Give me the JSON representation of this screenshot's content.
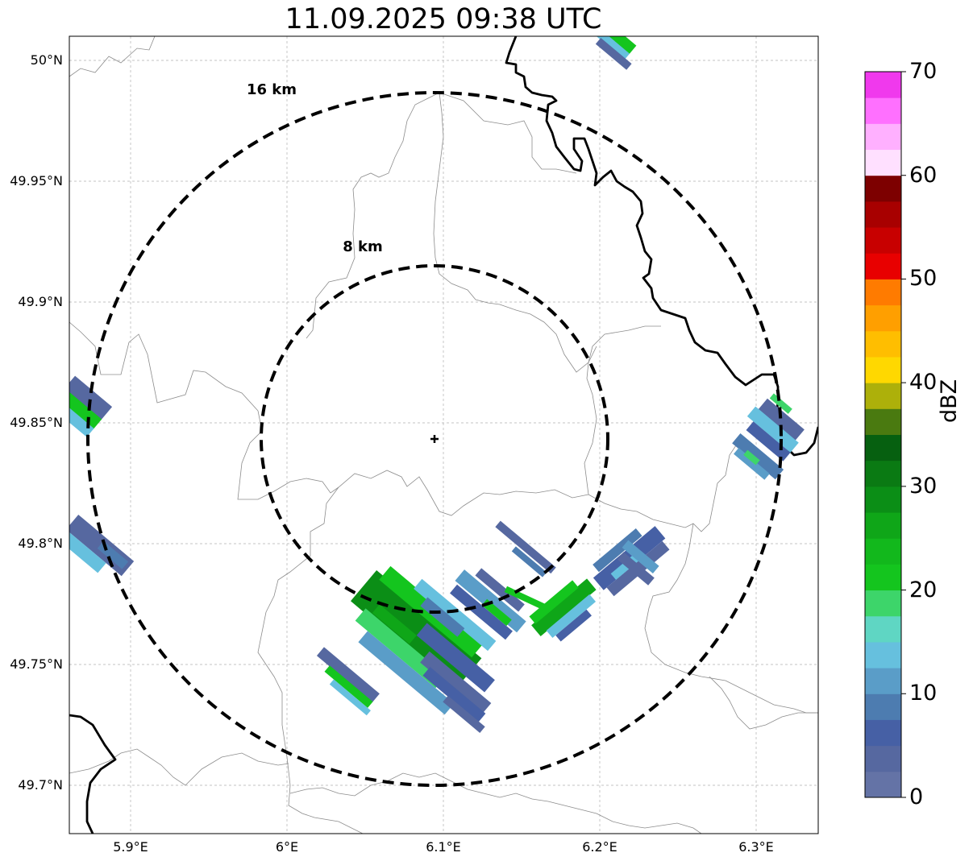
{
  "title": "11.09.2025 09:38 UTC",
  "map": {
    "radar_site": {
      "lon": 6.095,
      "lat": 49.84
    },
    "extent": {
      "lon": [
        5.86,
        6.34
      ],
      "lat": [
        49.68,
        50.01
      ]
    },
    "range_rings": [
      {
        "label": "8 km",
        "radius_km": 8
      },
      {
        "label": "16 km",
        "radius_km": 16
      }
    ],
    "lon_ticks": [
      "5.9°E",
      "6°E",
      "6.1°E",
      "6.2°E",
      "6.3°E"
    ],
    "lat_ticks": [
      "50°N",
      "49.95°N",
      "49.9°N",
      "49.85°N",
      "49.8°N",
      "49.75°N",
      "49.7°N"
    ],
    "colors": {
      "border": "#000000",
      "admin_lines": "#8c8c8c",
      "grid": "#b0b0b0"
    }
  },
  "colorbar": {
    "label": "dBZ",
    "min": 0,
    "max": 70,
    "ticks": [
      "0",
      "10",
      "20",
      "30",
      "40",
      "50",
      "60",
      "70"
    ],
    "colors": [
      "#6473a6",
      "#5668a0",
      "#4660a5",
      "#4d7cb0",
      "#5a9dc8",
      "#66c0de",
      "#5fd6c3",
      "#3dd56a",
      "#14c51e",
      "#12b81c",
      "#0fa618",
      "#0b8e16",
      "#0a7a13",
      "#066010",
      "#4a7a10",
      "#adb00a",
      "#ffd800",
      "#ffbe00",
      "#ff9f00",
      "#ff7b00",
      "#e80000",
      "#c80000",
      "#a80000",
      "#7d0000",
      "#ffe0ff",
      "#ffb0ff",
      "#ff70ff",
      "#f039ed"
    ]
  }
}
